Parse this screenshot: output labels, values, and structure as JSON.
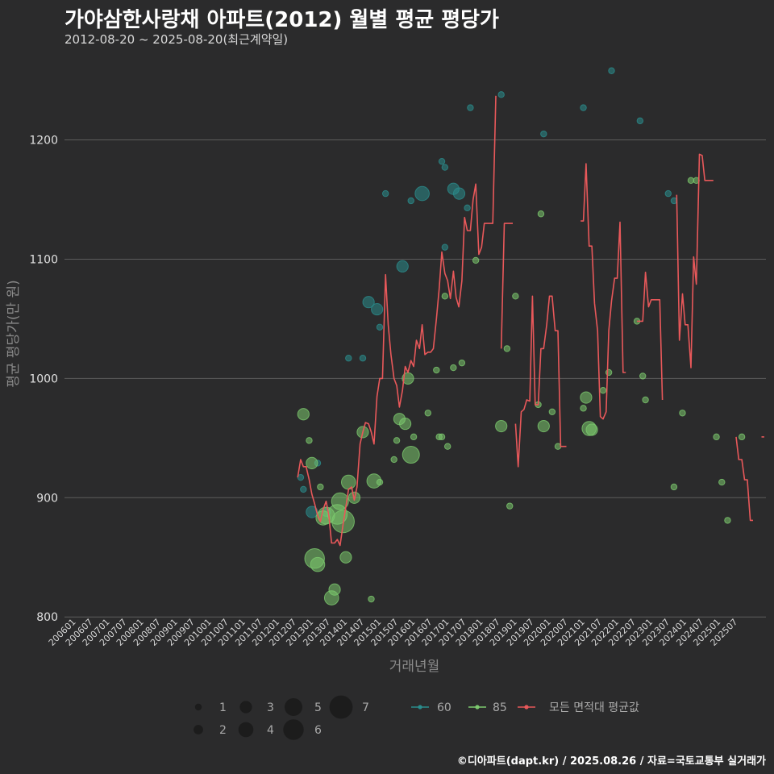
{
  "chart_data": {
    "type": "scatter",
    "title": "가야삼한사랑채 아파트(2012) 월별 평균 평당가",
    "subtitle": "2012-08-20 ~ 2025-08-20(최근계약일)",
    "xlabel": "거래년월",
    "ylabel": "평균 평당가(만 원)",
    "ylim": [
      790,
      1270
    ],
    "yticks": [
      800,
      900,
      1000,
      1100,
      1200
    ],
    "xlim": [
      2005.75,
      2026.0
    ],
    "xtick_labels": [
      "200601",
      "200607",
      "200701",
      "200707",
      "200801",
      "200807",
      "200901",
      "200907",
      "201001",
      "201007",
      "201101",
      "201107",
      "201201",
      "201207",
      "201301",
      "201307",
      "201401",
      "201407",
      "201501",
      "201507",
      "201601",
      "201607",
      "201701",
      "201707",
      "201801",
      "201807",
      "201901",
      "201907",
      "202001",
      "202007",
      "202101",
      "202107",
      "202201",
      "202207",
      "202301",
      "202307",
      "202401",
      "202407",
      "202501",
      "202507"
    ],
    "size_legend": {
      "labels": [
        "1",
        "2",
        "3",
        "4",
        "5",
        "6",
        "7"
      ],
      "values": [
        1,
        2,
        3,
        4,
        5,
        6,
        7
      ]
    },
    "series_legend": [
      {
        "name": "60",
        "color": "#2a8c8c"
      },
      {
        "name": "85",
        "color": "#7cc96e"
      },
      {
        "name": "모든 면적대 평균값",
        "color": "#e8585a"
      }
    ],
    "series": [
      {
        "name": "60",
        "color": "#2a8c8c",
        "points": [
          [
            2012.71,
            917,
            1
          ],
          [
            2012.79,
            907,
            1
          ],
          [
            2013.04,
            888,
            3
          ],
          [
            2013.21,
            929,
            1
          ],
          [
            2013.46,
            888,
            2
          ],
          [
            2014.12,
            1017,
            1
          ],
          [
            2014.54,
            1017,
            1
          ],
          [
            2014.71,
            1064,
            3
          ],
          [
            2014.96,
            1058,
            3
          ],
          [
            2015.04,
            1043,
            1
          ],
          [
            2015.21,
            1155,
            1
          ],
          [
            2015.71,
            1094,
            3
          ],
          [
            2015.96,
            1149,
            1
          ],
          [
            2016.29,
            1155,
            4
          ],
          [
            2016.87,
            1182,
            1
          ],
          [
            2016.96,
            1177,
            1
          ],
          [
            2016.96,
            1110,
            1
          ],
          [
            2017.21,
            1159,
            3
          ],
          [
            2017.38,
            1155,
            3
          ],
          [
            2017.62,
            1143,
            1
          ],
          [
            2017.71,
            1227,
            1
          ],
          [
            2018.62,
            1238,
            1
          ],
          [
            2019.87,
            1205,
            1
          ],
          [
            2021.04,
            1227,
            1
          ],
          [
            2021.87,
            1258,
            1
          ],
          [
            2022.71,
            1216,
            1
          ],
          [
            2023.54,
            1155,
            1
          ],
          [
            2023.71,
            1149,
            1
          ]
        ]
      },
      {
        "name": "85",
        "color": "#7cc96e",
        "points": [
          [
            2012.79,
            970,
            3
          ],
          [
            2012.96,
            948,
            1
          ],
          [
            2013.04,
            929,
            3
          ],
          [
            2013.12,
            849,
            6
          ],
          [
            2013.21,
            844,
            4
          ],
          [
            2013.29,
            909,
            1
          ],
          [
            2013.37,
            883,
            4
          ],
          [
            2013.46,
            885,
            5
          ],
          [
            2013.62,
            816,
            4
          ],
          [
            2013.71,
            823,
            3
          ],
          [
            2013.79,
            886,
            6
          ],
          [
            2013.87,
            897,
            5
          ],
          [
            2013.96,
            880,
            7
          ],
          [
            2014.04,
            850,
            3
          ],
          [
            2014.12,
            913,
            4
          ],
          [
            2014.29,
            900,
            3
          ],
          [
            2014.54,
            955,
            3
          ],
          [
            2014.79,
            815,
            1
          ],
          [
            2014.87,
            914,
            4
          ],
          [
            2015.04,
            913,
            1
          ],
          [
            2015.46,
            932,
            1
          ],
          [
            2015.54,
            948,
            1
          ],
          [
            2015.62,
            966,
            3
          ],
          [
            2015.79,
            962,
            3
          ],
          [
            2015.87,
            1000,
            3
          ],
          [
            2015.96,
            936,
            5
          ],
          [
            2016.04,
            951,
            1
          ],
          [
            2016.46,
            971,
            1
          ],
          [
            2016.71,
            1007,
            1
          ],
          [
            2016.79,
            951,
            1
          ],
          [
            2016.87,
            951,
            1
          ],
          [
            2016.96,
            1069,
            1
          ],
          [
            2017.04,
            943,
            1
          ],
          [
            2017.21,
            1009,
            1
          ],
          [
            2017.46,
            1013,
            1
          ],
          [
            2017.87,
            1099,
            1
          ],
          [
            2018.62,
            960,
            3
          ],
          [
            2018.79,
            1025,
            1
          ],
          [
            2018.87,
            893,
            1
          ],
          [
            2019.04,
            1069,
            1
          ],
          [
            2019.71,
            978,
            1
          ],
          [
            2019.79,
            1138,
            1
          ],
          [
            2019.87,
            960,
            3
          ],
          [
            2020.12,
            972,
            1
          ],
          [
            2020.29,
            943,
            1
          ],
          [
            2021.04,
            975,
            1
          ],
          [
            2021.12,
            984,
            3
          ],
          [
            2021.21,
            958,
            4
          ],
          [
            2021.29,
            957,
            3
          ],
          [
            2021.62,
            990,
            1
          ],
          [
            2021.79,
            1005,
            1
          ],
          [
            2022.62,
            1048,
            1
          ],
          [
            2022.79,
            1002,
            1
          ],
          [
            2022.87,
            982,
            1
          ],
          [
            2023.71,
            909,
            1
          ],
          [
            2023.96,
            971,
            1
          ],
          [
            2024.21,
            1166,
            1
          ],
          [
            2024.37,
            1166,
            1
          ],
          [
            2024.96,
            951,
            1
          ],
          [
            2025.12,
            913,
            1
          ],
          [
            2025.29,
            881,
            1
          ],
          [
            2025.71,
            951,
            1
          ]
        ]
      }
    ],
    "avg_line": [
      [
        [
          2012.62,
          917
        ],
        [
          2012.71,
          932
        ],
        [
          2012.79,
          926
        ],
        [
          2012.87,
          926
        ],
        [
          2012.96,
          915
        ],
        [
          2013.04,
          903
        ],
        [
          2013.12,
          895
        ],
        [
          2013.21,
          885
        ],
        [
          2013.29,
          880
        ],
        [
          2013.37,
          890
        ],
        [
          2013.46,
          897
        ],
        [
          2013.54,
          885
        ],
        [
          2013.62,
          862
        ],
        [
          2013.71,
          862
        ],
        [
          2013.79,
          865
        ],
        [
          2013.87,
          860
        ],
        [
          2013.96,
          878
        ],
        [
          2014.04,
          892
        ],
        [
          2014.12,
          907
        ],
        [
          2014.21,
          909
        ],
        [
          2014.29,
          898
        ],
        [
          2014.37,
          909
        ],
        [
          2014.46,
          945
        ],
        [
          2014.54,
          955
        ],
        [
          2014.62,
          963
        ],
        [
          2014.71,
          962
        ],
        [
          2014.79,
          955
        ],
        [
          2014.87,
          945
        ],
        [
          2014.96,
          985
        ],
        [
          2015.04,
          1000
        ],
        [
          2015.12,
          1000
        ],
        [
          2015.21,
          1087
        ],
        [
          2015.29,
          1045
        ],
        [
          2015.37,
          1020
        ],
        [
          2015.46,
          1000
        ],
        [
          2015.54,
          994
        ],
        [
          2015.62,
          976
        ],
        [
          2015.71,
          990
        ],
        [
          2015.79,
          1010
        ],
        [
          2015.87,
          1005
        ],
        [
          2015.96,
          1015
        ],
        [
          2016.04,
          1010
        ],
        [
          2016.12,
          1032
        ],
        [
          2016.21,
          1025
        ],
        [
          2016.29,
          1045
        ],
        [
          2016.37,
          1020
        ],
        [
          2016.46,
          1022
        ],
        [
          2016.54,
          1022
        ],
        [
          2016.62,
          1025
        ],
        [
          2016.71,
          1050
        ],
        [
          2016.79,
          1075
        ],
        [
          2016.87,
          1106
        ],
        [
          2016.96,
          1088
        ],
        [
          2017.04,
          1082
        ],
        [
          2017.12,
          1067
        ],
        [
          2017.21,
          1090
        ],
        [
          2017.29,
          1068
        ],
        [
          2017.37,
          1060
        ],
        [
          2017.46,
          1082
        ],
        [
          2017.54,
          1135
        ],
        [
          2017.62,
          1124
        ],
        [
          2017.71,
          1124
        ],
        [
          2017.79,
          1150
        ],
        [
          2017.87,
          1163
        ],
        [
          2017.96,
          1104
        ],
        [
          2018.04,
          1110
        ],
        [
          2018.12,
          1130
        ],
        [
          2018.21,
          1130
        ],
        [
          2018.29,
          1130
        ],
        [
          2018.37,
          1130
        ],
        [
          2018.46,
          1237
        ]
      ],
      [
        [
          2018.62,
          1025
        ],
        [
          2018.71,
          1130
        ],
        [
          2018.79,
          1130
        ],
        [
          2018.87,
          1130
        ],
        [
          2018.96,
          1130
        ]
      ],
      [
        [
          2019.04,
          962
        ],
        [
          2019.12,
          926
        ],
        [
          2019.21,
          972
        ],
        [
          2019.29,
          974
        ],
        [
          2019.37,
          982
        ],
        [
          2019.46,
          981
        ],
        [
          2019.54,
          1069
        ],
        [
          2019.62,
          978
        ],
        [
          2019.71,
          978
        ],
        [
          2019.79,
          1025
        ],
        [
          2019.87,
          1025
        ],
        [
          2019.96,
          1045
        ],
        [
          2020.04,
          1069
        ],
        [
          2020.12,
          1069
        ],
        [
          2020.21,
          1040
        ],
        [
          2020.29,
          1040
        ],
        [
          2020.37,
          943
        ],
        [
          2020.46,
          943
        ],
        [
          2020.54,
          943
        ]
      ],
      [
        [
          2020.96,
          1132
        ],
        [
          2021.04,
          1132
        ],
        [
          2021.12,
          1180
        ],
        [
          2021.21,
          1111
        ],
        [
          2021.29,
          1111
        ],
        [
          2021.37,
          1063
        ],
        [
          2021.46,
          1040
        ],
        [
          2021.54,
          968
        ],
        [
          2021.62,
          966
        ],
        [
          2021.71,
          972
        ],
        [
          2021.79,
          1040
        ],
        [
          2021.87,
          1065
        ],
        [
          2021.96,
          1084
        ],
        [
          2022.04,
          1084
        ],
        [
          2022.12,
          1131
        ],
        [
          2022.21,
          1005
        ],
        [
          2022.29,
          1005
        ]
      ],
      [
        [
          2022.62,
          1048
        ],
        [
          2022.71,
          1048
        ],
        [
          2022.79,
          1048
        ],
        [
          2022.87,
          1089
        ],
        [
          2022.96,
          1060
        ],
        [
          2023.04,
          1066
        ],
        [
          2023.12,
          1066
        ],
        [
          2023.21,
          1066
        ],
        [
          2023.29,
          1066
        ],
        [
          2023.37,
          982
        ]
      ],
      [
        [
          2023.79,
          1154
        ],
        [
          2023.87,
          1032
        ],
        [
          2023.96,
          1071
        ],
        [
          2024.04,
          1045
        ],
        [
          2024.12,
          1045
        ],
        [
          2024.21,
          1009
        ],
        [
          2024.29,
          1102
        ],
        [
          2024.37,
          1079
        ],
        [
          2024.46,
          1188
        ],
        [
          2024.54,
          1187
        ],
        [
          2024.62,
          1166
        ],
        [
          2024.71,
          1166
        ],
        [
          2024.79,
          1166
        ],
        [
          2024.87,
          1166
        ]
      ],
      [
        [
          2025.54,
          951
        ],
        [
          2025.62,
          932
        ],
        [
          2025.71,
          932
        ],
        [
          2025.79,
          915
        ],
        [
          2025.87,
          915
        ],
        [
          2025.96,
          881
        ],
        [
          2026.04,
          881
        ]
      ],
      [
        [
          2026.29,
          951
        ],
        [
          2026.37,
          951
        ]
      ]
    ]
  },
  "footer": "©디아파트(dapt.kr) / 2025.08.26 / 자료=국토교통부 실거래가"
}
